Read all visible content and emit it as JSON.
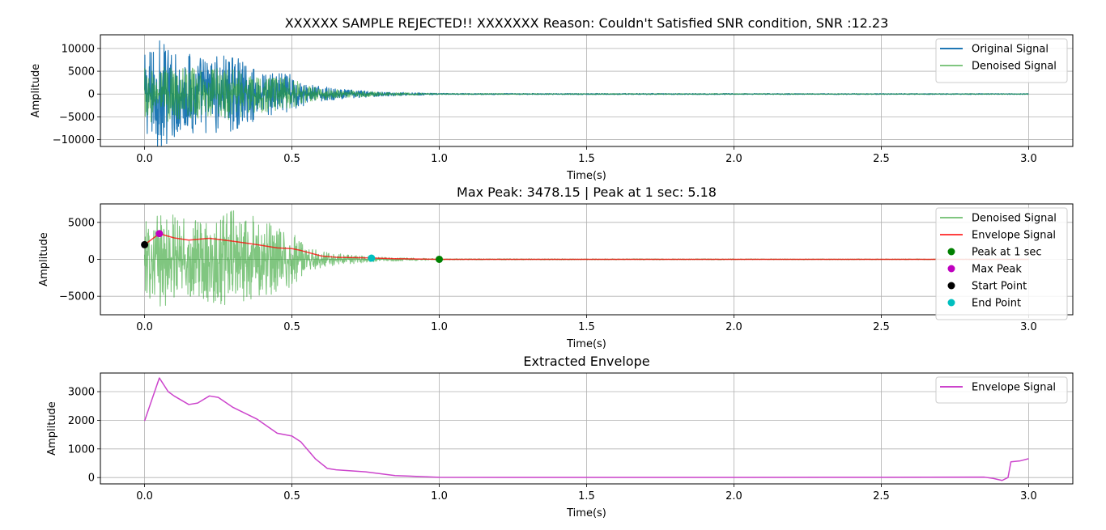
{
  "chart_data": [
    {
      "type": "line",
      "title": "XXXXXX SAMPLE REJECTED!! XXXXXXX Reason: Couldn't Satisfied SNR condition, SNR :12.23",
      "xlabel": "Time(s)",
      "ylabel": "Amplitude",
      "xlim": [
        -0.15,
        3.15
      ],
      "ylim": [
        -11500,
        13000
      ],
      "x_ticks": [
        0.0,
        0.5,
        1.0,
        1.5,
        2.0,
        2.5,
        3.0
      ],
      "x_tick_labels": [
        "0.0",
        "0.5",
        "1.0",
        "1.5",
        "2.0",
        "2.5",
        "3.0"
      ],
      "y_ticks": [
        -10000,
        -5000,
        0,
        5000,
        10000
      ],
      "y_tick_labels": [
        "−10000",
        "−5000",
        "0",
        "5000",
        "10000"
      ],
      "grid": true,
      "legend_position": "top-right",
      "series": [
        {
          "name": "Original Signal",
          "color": "#1f77b4",
          "kind": "noise",
          "opacity": 1,
          "envelope": [
            [
              0.0,
              9000
            ],
            [
              0.05,
              12300
            ],
            [
              0.1,
              10000
            ],
            [
              0.2,
              9000
            ],
            [
              0.3,
              8500
            ],
            [
              0.4,
              5000
            ],
            [
              0.5,
              4500
            ],
            [
              0.55,
              2200
            ],
            [
              0.65,
              1200
            ],
            [
              0.8,
              500
            ],
            [
              1.0,
              150
            ],
            [
              3.0,
              100
            ]
          ]
        },
        {
          "name": "Denoised Signal",
          "color": "#2ca02c",
          "kind": "noise",
          "opacity": 0.6,
          "envelope": [
            [
              0.0,
              6000
            ],
            [
              0.05,
              6500
            ],
            [
              0.1,
              6000
            ],
            [
              0.2,
              5500
            ],
            [
              0.3,
              5800
            ],
            [
              0.4,
              4000
            ],
            [
              0.5,
              3500
            ],
            [
              0.55,
              1800
            ],
            [
              0.65,
              1000
            ],
            [
              0.8,
              400
            ],
            [
              1.0,
              120
            ],
            [
              3.0,
              80
            ]
          ]
        }
      ]
    },
    {
      "type": "line",
      "title": "Max Peak: 3478.15 | Peak at 1 sec: 5.18",
      "xlabel": "Time(s)",
      "ylabel": "Amplitude",
      "xlim": [
        -0.15,
        3.15
      ],
      "ylim": [
        -7500,
        7500
      ],
      "x_ticks": [
        0.0,
        0.5,
        1.0,
        1.5,
        2.0,
        2.5,
        3.0
      ],
      "x_tick_labels": [
        "0.0",
        "0.5",
        "1.0",
        "1.5",
        "2.0",
        "2.5",
        "3.0"
      ],
      "y_ticks": [
        -5000,
        0,
        5000
      ],
      "y_tick_labels": [
        "−5000",
        "0",
        "5000"
      ],
      "grid": true,
      "legend_position": "top-right",
      "series": [
        {
          "name": "Denoised Signal",
          "color": "#2ca02c",
          "kind": "noise",
          "opacity": 0.6,
          "envelope": [
            [
              0.0,
              5000
            ],
            [
              0.05,
              6500
            ],
            [
              0.1,
              6000
            ],
            [
              0.2,
              5500
            ],
            [
              0.3,
              6800
            ],
            [
              0.4,
              5500
            ],
            [
              0.5,
              4000
            ],
            [
              0.55,
              1500
            ],
            [
              0.65,
              800
            ],
            [
              0.8,
              300
            ],
            [
              1.0,
              80
            ],
            [
              3.0,
              50
            ]
          ]
        },
        {
          "name": "Envelope Signal",
          "color": "#ff0000",
          "kind": "line",
          "opacity": 0.75,
          "points": [
            [
              0.0,
              1980
            ],
            [
              0.05,
              3478
            ],
            [
              0.1,
              2900
            ],
            [
              0.15,
              2600
            ],
            [
              0.22,
              2850
            ],
            [
              0.3,
              2450
            ],
            [
              0.38,
              2000
            ],
            [
              0.45,
              1550
            ],
            [
              0.5,
              1450
            ],
            [
              0.53,
              1200
            ],
            [
              0.6,
              450
            ],
            [
              0.65,
              280
            ],
            [
              0.75,
              200
            ],
            [
              0.85,
              80
            ],
            [
              1.0,
              5
            ],
            [
              3.0,
              5
            ]
          ]
        },
        {
          "name": "Peak at 1 sec",
          "color": "#008000",
          "kind": "marker",
          "x": 1.0,
          "y": 5.18
        },
        {
          "name": "Max Peak",
          "color": "#bf00bf",
          "kind": "marker",
          "x": 0.05,
          "y": 3478.15
        },
        {
          "name": "Start Point",
          "color": "#000000",
          "kind": "marker",
          "x": 0.0,
          "y": 1980
        },
        {
          "name": "End Point",
          "color": "#00bfbf",
          "kind": "marker",
          "x": 0.77,
          "y": 160
        }
      ]
    },
    {
      "type": "line",
      "title": "Extracted Envelope",
      "xlabel": "Time(s)",
      "ylabel": "Amplitude",
      "xlim": [
        -0.15,
        3.15
      ],
      "ylim": [
        -220,
        3650
      ],
      "x_ticks": [
        0.0,
        0.5,
        1.0,
        1.5,
        2.0,
        2.5,
        3.0
      ],
      "x_tick_labels": [
        "0.0",
        "0.5",
        "1.0",
        "1.5",
        "2.0",
        "2.5",
        "3.0"
      ],
      "y_ticks": [
        0,
        1000,
        2000,
        3000
      ],
      "y_tick_labels": [
        "0",
        "1000",
        "2000",
        "3000"
      ],
      "grid": true,
      "legend_position": "top-right",
      "series": [
        {
          "name": "Envelope Signal",
          "color": "#cc44cc",
          "kind": "line",
          "opacity": 1,
          "points": [
            [
              0.0,
              1980
            ],
            [
              0.05,
              3478
            ],
            [
              0.08,
              3000
            ],
            [
              0.1,
              2850
            ],
            [
              0.15,
              2550
            ],
            [
              0.18,
              2600
            ],
            [
              0.22,
              2850
            ],
            [
              0.25,
              2800
            ],
            [
              0.3,
              2450
            ],
            [
              0.38,
              2050
            ],
            [
              0.45,
              1550
            ],
            [
              0.5,
              1450
            ],
            [
              0.53,
              1250
            ],
            [
              0.58,
              650
            ],
            [
              0.62,
              320
            ],
            [
              0.65,
              270
            ],
            [
              0.75,
              200
            ],
            [
              0.85,
              70
            ],
            [
              1.0,
              10
            ],
            [
              1.5,
              5
            ],
            [
              2.0,
              5
            ],
            [
              2.5,
              10
            ],
            [
              2.85,
              15
            ],
            [
              2.88,
              -30
            ],
            [
              2.91,
              -100
            ],
            [
              2.93,
              0
            ],
            [
              2.94,
              550
            ],
            [
              2.97,
              580
            ],
            [
              3.0,
              660
            ]
          ]
        }
      ]
    }
  ]
}
